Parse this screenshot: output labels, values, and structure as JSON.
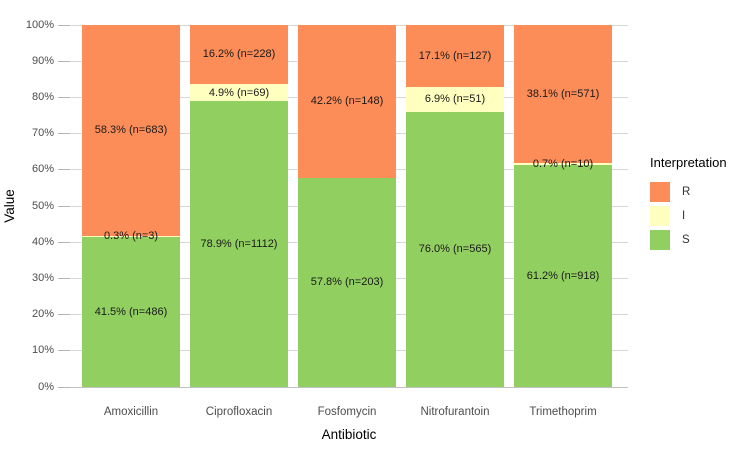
{
  "figure": {
    "y_axis_title": "Value",
    "x_axis_title": "Antibiotic",
    "y_tick_labels": [
      "0%",
      "10%",
      "20%",
      "30%",
      "40%",
      "50%",
      "60%",
      "70%",
      "80%",
      "90%",
      "100%"
    ]
  },
  "legend": {
    "title": "Interpretation",
    "items": [
      {
        "label": "R",
        "color": "#FC8D59"
      },
      {
        "label": "I",
        "color": "#FFFFBF"
      },
      {
        "label": "S",
        "color": "#91CF60"
      }
    ]
  },
  "chart_data": {
    "type": "bar",
    "stacked": true,
    "title": "",
    "xlabel": "Antibiotic",
    "ylabel": "Value",
    "ylim": [
      0,
      100
    ],
    "y_tick_step": 10,
    "y_unit": "percent",
    "grid": true,
    "legend_position": "right",
    "legend_title": "Interpretation",
    "categories": [
      "Amoxicillin",
      "Ciprofloxacin",
      "Fosfomycin",
      "Nitrofurantoin",
      "Trimethoprim"
    ],
    "stack_order_bottom_to_top": [
      "S",
      "I",
      "R"
    ],
    "series": [
      {
        "name": "R",
        "color": "#FC8D59",
        "values": [
          58.3,
          16.2,
          42.2,
          17.1,
          38.1
        ],
        "counts": [
          683,
          228,
          148,
          127,
          571
        ],
        "labels": [
          "58.3% (n=683)",
          "16.2% (n=228)",
          "42.2% (n=148)",
          "17.1% (n=127)",
          "38.1% (n=571)"
        ]
      },
      {
        "name": "I",
        "color": "#FFFFBF",
        "values": [
          0.3,
          4.9,
          0,
          6.9,
          0.7
        ],
        "counts": [
          3,
          69,
          null,
          51,
          10
        ],
        "labels": [
          "0.3% (n=3)",
          "4.9% (n=69)",
          "",
          "6.9% (n=51)",
          "0.7% (n=10)"
        ]
      },
      {
        "name": "S",
        "color": "#91CF60",
        "values": [
          41.5,
          78.9,
          57.8,
          76.0,
          61.2
        ],
        "counts": [
          486,
          1112,
          203,
          565,
          918
        ],
        "labels": [
          "41.5% (n=486)",
          "78.9% (n=1112)",
          "57.8% (n=203)",
          "76.0% (n=565)",
          "61.2% (n=918)"
        ]
      }
    ]
  }
}
